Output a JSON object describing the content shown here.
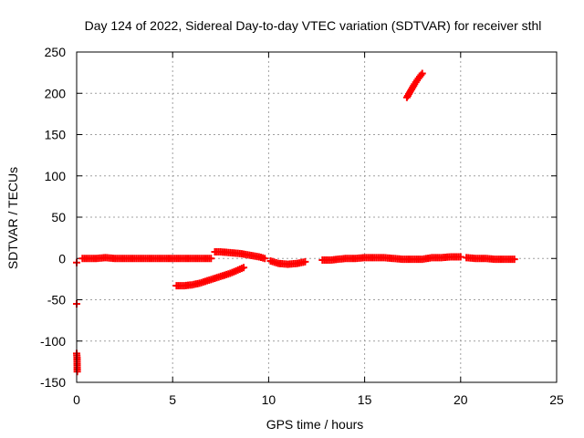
{
  "chart_data": {
    "type": "scatter",
    "title": "Day 124 of 2022, Sidereal Day-to-day VTEC variation (SDTVAR) for receiver sthl",
    "xlabel": "GPS time / hours",
    "ylabel": "SDTVAR / TECUs",
    "xlim": [
      0,
      25
    ],
    "ylim": [
      -150,
      250
    ],
    "xticks": [
      0,
      5,
      10,
      15,
      20,
      25
    ],
    "yticks": [
      -150,
      -100,
      -50,
      0,
      50,
      100,
      150,
      200,
      250
    ],
    "grid": true,
    "marker_color": "#ff0000",
    "series": [
      {
        "segments": [
          {
            "x": [
              0.0,
              0.0,
              0.0,
              0.02,
              0.03
            ],
            "y": [
              -5,
              -55,
              -115,
              -120,
              -137
            ]
          },
          {
            "x": [
              0.3,
              0.6,
              1.0,
              1.5,
              2.0,
              2.5,
              3.0,
              3.5,
              4.0,
              4.5,
              5.0,
              5.5,
              6.0,
              6.5,
              7.0
            ],
            "y": [
              0,
              0,
              0,
              1,
              0,
              0,
              0,
              0,
              0,
              0,
              0,
              0,
              0,
              0,
              0
            ]
          },
          {
            "x": [
              5.2,
              5.6,
              6.0,
              6.4,
              6.8,
              7.2,
              7.6,
              8.0,
              8.4,
              8.7
            ],
            "y": [
              -33,
              -33,
              -32,
              -30,
              -27,
              -24,
              -21,
              -18,
              -14,
              -11
            ]
          },
          {
            "x": [
              7.2,
              7.5,
              8.0,
              8.5,
              9.0,
              9.5,
              9.8
            ],
            "y": [
              8,
              8,
              7,
              6,
              4,
              2,
              0
            ]
          },
          {
            "x": [
              10.1,
              10.5,
              11.0,
              11.5,
              11.9
            ],
            "y": [
              -3,
              -6,
              -7,
              -6,
              -4
            ]
          },
          {
            "x": [
              12.8,
              13.2,
              13.6,
              14.0,
              14.5,
              15.0,
              15.5,
              16.0,
              16.5,
              17.0,
              17.5,
              18.0,
              18.5,
              19.0,
              19.5,
              20.0
            ],
            "y": [
              -2,
              -2,
              -1,
              0,
              0,
              1,
              1,
              1,
              0,
              -1,
              -1,
              -1,
              1,
              1,
              2,
              2
            ]
          },
          {
            "x": [
              17.2,
              17.4,
              17.6,
              17.8,
              18.0
            ],
            "y": [
              195,
              203,
              211,
              218,
              224
            ]
          },
          {
            "x": [
              20.3,
              20.8,
              21.3,
              21.8,
              22.3,
              22.8
            ],
            "y": [
              1,
              0,
              0,
              -1,
              -1,
              -1
            ]
          }
        ]
      }
    ]
  }
}
